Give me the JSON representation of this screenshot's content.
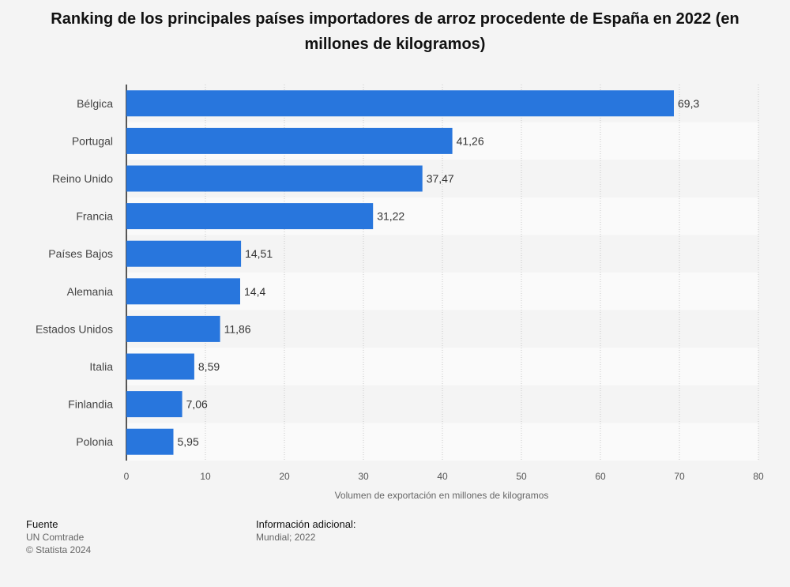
{
  "chart_data": {
    "type": "bar",
    "orientation": "horizontal",
    "title": "Ranking de los principales países importadores de arroz procedente de España en 2022 (en millones de kilogramos)",
    "categories": [
      "Bélgica",
      "Portugal",
      "Reino Unido",
      "Francia",
      "Países Bajos",
      "Alemania",
      "Estados Unidos",
      "Italia",
      "Finlandia",
      "Polonia"
    ],
    "values": [
      69.3,
      41.26,
      37.47,
      31.22,
      14.51,
      14.4,
      11.86,
      8.59,
      7.06,
      5.95
    ],
    "value_labels": [
      "69,3",
      "41,26",
      "37,47",
      "31,22",
      "14,51",
      "14,4",
      "11,86",
      "8,59",
      "7,06",
      "5,95"
    ],
    "xlabel": "Volumen de exportación en millones de kilogramos",
    "ylabel": "",
    "xlim": [
      0,
      80
    ],
    "xticks": [
      0,
      10,
      20,
      30,
      40,
      50,
      60,
      70,
      80
    ],
    "grid": true,
    "bar_color": "#2876dd"
  },
  "footer": {
    "source_heading": "Fuente",
    "source_name": "UN Comtrade",
    "copyright": "© Statista 2024",
    "info_heading": "Información adicional:",
    "info_text": "Mundial; 2022"
  }
}
